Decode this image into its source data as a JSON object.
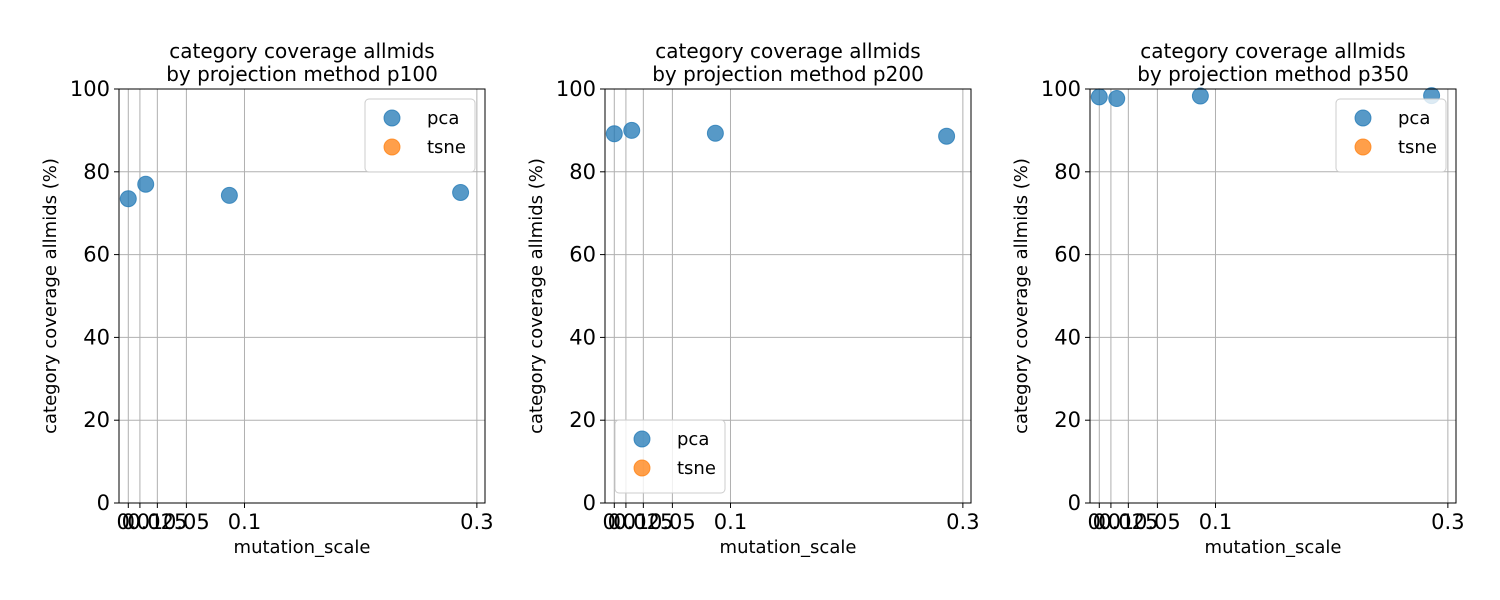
{
  "chart_data": [
    {
      "type": "scatter",
      "title": [
        "category coverage allmids",
        "by projection method p100"
      ],
      "xlabel": "mutation_scale",
      "ylabel": "category coverage allmids (%)",
      "xlim": [
        -0.008,
        0.307
      ],
      "ylim": [
        0,
        100
      ],
      "xticks": [
        0,
        0.01,
        0.025,
        0.05,
        0.1,
        0.3
      ],
      "xtick_labels": [
        "0",
        "0.01",
        "0.025",
        "0.05",
        "0.1",
        "0.3"
      ],
      "yticks": [
        0,
        20,
        40,
        60,
        80,
        100
      ],
      "ytick_labels": [
        "0",
        "20",
        "40",
        "60",
        "80",
        "100"
      ],
      "grid": true,
      "legend_position": "upper right",
      "series": [
        {
          "name": "pca",
          "color": "#1f77b4",
          "x": [
            0,
            0.015,
            0.087,
            0.286
          ],
          "y": [
            73.5,
            77,
            74.3,
            75
          ]
        },
        {
          "name": "tsne",
          "color": "#ff7f0e",
          "x": [],
          "y": []
        }
      ]
    },
    {
      "type": "scatter",
      "title": [
        "category coverage allmids",
        "by projection method p200"
      ],
      "xlabel": "mutation_scale",
      "ylabel": "category coverage allmids (%)",
      "xlim": [
        -0.008,
        0.307
      ],
      "ylim": [
        0,
        100
      ],
      "xticks": [
        0,
        0.01,
        0.025,
        0.05,
        0.1,
        0.3
      ],
      "xtick_labels": [
        "0",
        "0.01",
        "0.025",
        "0.05",
        "0.1",
        "0.3"
      ],
      "yticks": [
        0,
        20,
        40,
        60,
        80,
        100
      ],
      "ytick_labels": [
        "0",
        "20",
        "40",
        "60",
        "80",
        "100"
      ],
      "grid": true,
      "legend_position": "lower left",
      "series": [
        {
          "name": "pca",
          "color": "#1f77b4",
          "x": [
            0,
            0.015,
            0.087,
            0.286
          ],
          "y": [
            89.2,
            90,
            89.3,
            88.6
          ]
        },
        {
          "name": "tsne",
          "color": "#ff7f0e",
          "x": [],
          "y": []
        }
      ]
    },
    {
      "type": "scatter",
      "title": [
        "category coverage allmids",
        "by projection method p350"
      ],
      "xlabel": "mutation_scale",
      "ylabel": "category coverage allmids (%)",
      "xlim": [
        -0.008,
        0.307
      ],
      "ylim": [
        0,
        100
      ],
      "xticks": [
        0,
        0.01,
        0.025,
        0.05,
        0.1,
        0.3
      ],
      "xtick_labels": [
        "0",
        "0.01",
        "0.025",
        "0.05",
        "0.1",
        "0.3"
      ],
      "yticks": [
        0,
        20,
        40,
        60,
        80,
        100
      ],
      "ytick_labels": [
        "0",
        "20",
        "40",
        "60",
        "80",
        "100"
      ],
      "grid": true,
      "legend_position": "upper right",
      "series": [
        {
          "name": "pca",
          "color": "#1f77b4",
          "x": [
            0,
            0.015,
            0.087,
            0.286
          ],
          "y": [
            98.1,
            97.7,
            98.3,
            98.4
          ]
        },
        {
          "name": "tsne",
          "color": "#ff7f0e",
          "x": [],
          "y": []
        }
      ]
    }
  ]
}
